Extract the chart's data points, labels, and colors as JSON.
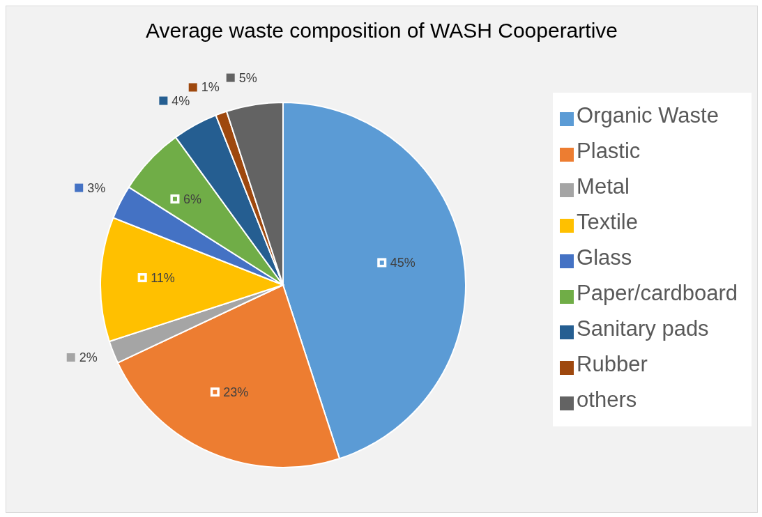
{
  "chart_data": {
    "type": "pie",
    "title": "Average waste composition of WASH Cooperartive",
    "categories": [
      "Organic Waste",
      "Plastic",
      "Metal",
      "Textile",
      "Glass",
      "Paper/cardboard",
      "Sanitary pads",
      "Rubber",
      "others"
    ],
    "values": [
      45,
      23,
      2,
      11,
      3,
      6,
      4,
      1,
      5
    ],
    "value_labels": [
      "45%",
      "23%",
      "2%",
      "11%",
      "3%",
      "6%",
      "4%",
      "1%",
      "5%"
    ],
    "colors": [
      "#5b9bd5",
      "#ed7d31",
      "#a5a5a5",
      "#ffc000",
      "#4472c4",
      "#70ad47",
      "#255e91",
      "#9e480e",
      "#636363"
    ],
    "legend": "right"
  }
}
